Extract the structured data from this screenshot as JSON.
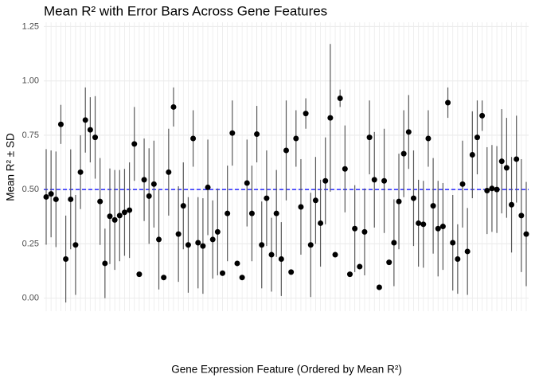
{
  "chart_data": {
    "type": "errorbar-scatter",
    "title": "Mean R² with Error Bars Across Gene Features",
    "x_label": "Gene Expression Feature (Ordered by Mean R²)",
    "y_label": "Mean R² ± SD",
    "categories": [
      null,
      null,
      null,
      null,
      null,
      null,
      null,
      null,
      null,
      null,
      null,
      null,
      null,
      null,
      null,
      null,
      null,
      null,
      null,
      null,
      null,
      null,
      null,
      null,
      null,
      null,
      null,
      null,
      null,
      null,
      null,
      null,
      null,
      null,
      null,
      null,
      null,
      null,
      null,
      null,
      null,
      null,
      null,
      null,
      null,
      null,
      null,
      null,
      null,
      null,
      null,
      null,
      null,
      null,
      null,
      null,
      null,
      null,
      null,
      null,
      null,
      null,
      null,
      null,
      null,
      null,
      null,
      null,
      null,
      null,
      null,
      null,
      null,
      null,
      null,
      null,
      null,
      null,
      null,
      null,
      null,
      null,
      null,
      null,
      null,
      null,
      null,
      null,
      null,
      null,
      null,
      null,
      null,
      null,
      null,
      null,
      null,
      null,
      null
    ],
    "values": [
      0.466,
      0.48,
      0.455,
      0.8,
      0.18,
      0.455,
      0.245,
      0.58,
      0.82,
      0.775,
      0.74,
      0.445,
      0.16,
      0.377,
      0.36,
      0.38,
      0.395,
      0.405,
      0.71,
      0.11,
      0.545,
      0.47,
      0.525,
      0.27,
      0.095,
      0.58,
      0.88,
      0.295,
      0.425,
      0.245,
      0.735,
      0.255,
      0.24,
      0.51,
      0.27,
      0.305,
      0.115,
      0.39,
      0.76,
      0.16,
      0.095,
      0.53,
      0.39,
      0.755,
      0.245,
      0.46,
      0.2,
      0.39,
      0.18,
      0.68,
      0.12,
      0.735,
      0.42,
      0.85,
      0.245,
      0.45,
      0.345,
      0.54,
      0.83,
      0.2,
      0.92,
      0.595,
      0.11,
      0.32,
      0.145,
      0.305,
      0.74,
      0.545,
      0.05,
      0.54,
      0.165,
      0.255,
      0.445,
      0.665,
      0.765,
      0.46,
      0.345,
      0.34,
      0.735,
      0.425,
      0.32,
      0.33,
      0.9,
      0.255,
      0.18,
      0.525,
      0.215,
      0.66,
      0.74,
      0.84,
      0.495,
      0.505,
      0.5,
      0.63,
      0.6,
      0.43,
      0.64,
      0.38,
      0.295
    ],
    "errors": [
      0.22,
      0.2,
      0.22,
      0.09,
      0.2,
      0.23,
      0.23,
      0.17,
      0.15,
      0.15,
      0.19,
      0.2,
      0.16,
      0.22,
      0.23,
      0.21,
      0.2,
      0.22,
      0.17,
      0.01,
      0.19,
      0.22,
      0.2,
      0.23,
      0.01,
      0.2,
      0.09,
      0.22,
      0.2,
      0.22,
      0.13,
      0.21,
      0.22,
      0.22,
      0.18,
      0.2,
      0.01,
      0.22,
      0.15,
      0.01,
      0.01,
      0.2,
      0.22,
      0.13,
      0.2,
      0.22,
      0.17,
      0.2,
      0.17,
      0.23,
      0.01,
      0.13,
      0.22,
      0.07,
      0.24,
      0.2,
      0.2,
      0.2,
      0.34,
      0.01,
      0.04,
      0.2,
      0.01,
      0.2,
      0.01,
      0.2,
      0.17,
      0.22,
      0.01,
      0.24,
      0.01,
      0.2,
      0.22,
      0.2,
      0.17,
      0.22,
      0.2,
      0.2,
      0.13,
      0.22,
      0.22,
      0.2,
      0.07,
      0.22,
      0.16,
      0.2,
      0.2,
      0.2,
      0.17,
      0.07,
      0.2,
      0.2,
      0.2,
      0.24,
      0.23,
      0.22,
      0.2,
      0.26,
      0.24
    ],
    "color": "#000000",
    "error_color": "#595959",
    "hline": {
      "value": 0.5,
      "color": "#0000ff"
    },
    "ylim": [
      -0.06,
      1.27
    ],
    "yticks": [
      {
        "value": 0,
        "label": "0.00"
      },
      {
        "value": 0.25,
        "label": "0.25"
      },
      {
        "value": 0.5,
        "label": "0.50"
      },
      {
        "value": 0.75,
        "label": "0.75"
      },
      {
        "value": 1,
        "label": "1.00"
      },
      {
        "value": 1.25,
        "label": "1.25"
      }
    ],
    "grid": true
  }
}
